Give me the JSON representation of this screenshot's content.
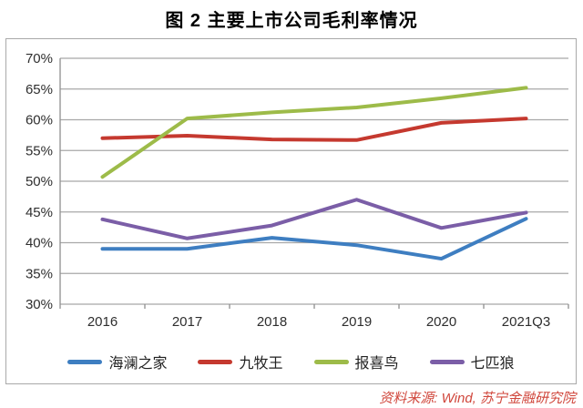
{
  "title": "图 2  主要上市公司毛利率情况",
  "source_text": "资料来源: Wind, 苏宁金融研究院",
  "colors": {
    "grid": "#a8a8a8",
    "axis": "#8f8f8f",
    "tick_text": "#2e2e2e",
    "source_text": "#d0463b",
    "background": "#ffffff",
    "box_border": "#a9a9a9"
  },
  "chart_data": {
    "type": "line",
    "categories": [
      "2016",
      "2017",
      "2018",
      "2019",
      "2020",
      "2021Q3"
    ],
    "series": [
      {
        "name": "海澜之家",
        "color": "#3e7ec1",
        "values": [
          39.0,
          39.0,
          40.8,
          39.6,
          37.4,
          43.9
        ]
      },
      {
        "name": "九牧王",
        "color": "#c5392f",
        "values": [
          57.0,
          57.4,
          56.8,
          56.7,
          59.5,
          60.2
        ]
      },
      {
        "name": "报喜鸟",
        "color": "#9dbb49",
        "values": [
          50.7,
          60.2,
          61.2,
          62.0,
          63.5,
          65.2
        ]
      },
      {
        "name": "七匹狼",
        "color": "#7b5ea7",
        "values": [
          43.8,
          40.7,
          42.8,
          47.0,
          42.4,
          44.9
        ]
      }
    ],
    "title": "图 2  主要上市公司毛利率情况",
    "xlabel": "",
    "ylabel": "",
    "ylim": [
      30,
      70
    ],
    "ytick_step": 5,
    "ytick_format": "percent",
    "grid": true,
    "legend_position": "bottom",
    "line_width": 4
  }
}
